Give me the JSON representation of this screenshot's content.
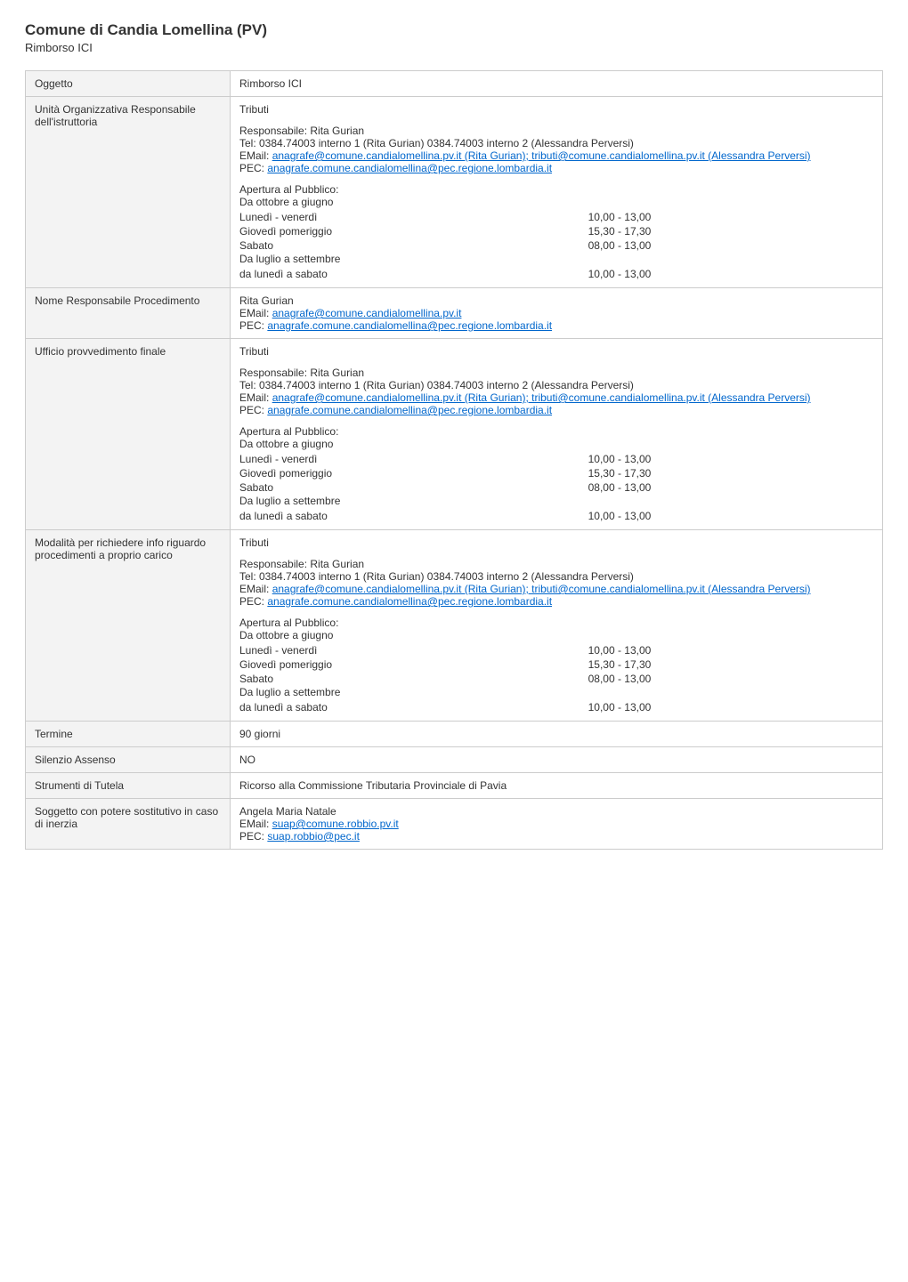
{
  "page": {
    "title": "Comune di Candia Lomellina (PV)",
    "subtitle": "Rimborso ICI"
  },
  "labels": {
    "oggetto": "Oggetto",
    "unita": "Unità Organizzativa Responsabile dell'istruttoria",
    "nome_resp": "Nome Responsabile Procedimento",
    "ufficio": "Ufficio provvedimento finale",
    "modalita": "Modalità per richiedere info riguardo procedimenti a proprio carico",
    "termine": "Termine",
    "silenzio": "Silenzio Assenso",
    "strumenti": "Strumenti di Tutela",
    "sostitutivo": "Soggetto con potere sostitutivo in caso di inerzia"
  },
  "common": {
    "responsabile_line": "Responsabile: Rita Gurian",
    "tel_line": "Tel: 0384.74003 interno 1 (Rita Gurian) 0384.74003 interno 2 (Alessandra Perversi)",
    "email_prefix": "EMail: ",
    "email_link1_text": "anagrafe@comune.candialomellina.pv.it (Rita Gurian); tributi@comune.candialomellina.pv.it (Alessandra Perversi)",
    "pec_prefix": "PEC: ",
    "pec_link_text": "anagrafe.comune.candialomellina@pec.regione.lombardia.it",
    "apertura_head": "Apertura al Pubblico:",
    "periodo1": "Da ottobre a giugno",
    "row1_day": "Lunedì - venerdì",
    "row1_time": "10,00 - 13,00",
    "row2_day": "Giovedì pomeriggio",
    "row2_time": "15,30 - 17,30",
    "row3_day": "Sabato",
    "row3_time": "08,00 - 13,00",
    "periodo2": "Da luglio a settembre",
    "row4_day": "da lunedì a sabato",
    "row4_time": "10,00 - 13,00"
  },
  "rows": {
    "oggetto_value": "Rimborso ICI",
    "unita_head": "Tributi",
    "nome_resp_name": "Rita Gurian",
    "nome_resp_email_prefix": "EMail: ",
    "nome_resp_email_text": "anagrafe@comune.candialomellina.pv.it",
    "nome_resp_pec_prefix": "PEC: ",
    "nome_resp_pec_text": "anagrafe.comune.candialomellina@pec.regione.lombardia.it",
    "ufficio_head": "Tributi",
    "modalita_head": "Tributi",
    "termine_value": "90 giorni",
    "silenzio_value": "NO",
    "strumenti_value": "Ricorso alla Commissione Tributaria Provinciale di Pavia",
    "sostitutivo_name": "Angela Maria Natale",
    "sostitutivo_email_prefix": "EMail: ",
    "sostitutivo_email_text": "suap@comune.robbio.pv.it",
    "sostitutivo_pec_prefix": "PEC: ",
    "sostitutivo_pec_text": "suap.robbio@pec.it"
  },
  "colors": {
    "text": "#333333",
    "link": "#0066cc",
    "border": "#cccccc",
    "label_bg": "#f3f3f3",
    "page_bg": "#ffffff"
  }
}
